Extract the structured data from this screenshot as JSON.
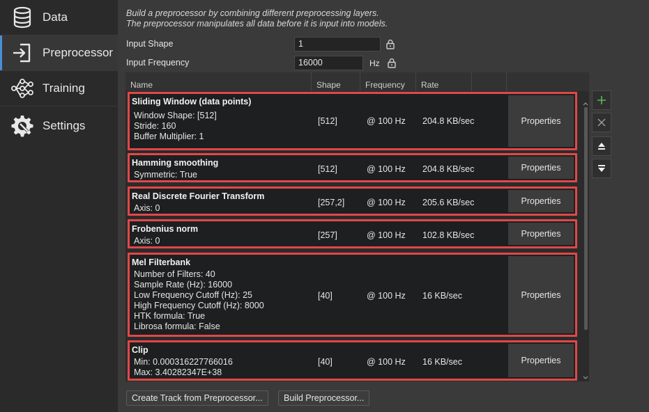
{
  "sidebar": {
    "items": [
      {
        "label": "Data",
        "icon": "database-icon"
      },
      {
        "label": "Preprocessor",
        "icon": "sign-in-icon"
      },
      {
        "label": "Training",
        "icon": "neural-network-icon"
      },
      {
        "label": "Settings",
        "icon": "gear-wrench-icon"
      }
    ],
    "active": "Preprocessor"
  },
  "description": {
    "line1": "Build a preprocessor by combining different preprocessing layers.",
    "line2": "The preprocessor manipulates all data before it is input into models."
  },
  "fields": {
    "input_shape_label": "Input Shape",
    "input_shape_value": "1",
    "input_frequency_label": "Input Frequency",
    "input_frequency_value": "16000",
    "frequency_unit": "Hz"
  },
  "table": {
    "headers": [
      "Name",
      "Shape",
      "Frequency",
      "Rate"
    ],
    "properties_label": "Properties",
    "rows": [
      {
        "name": "Sliding Window (data points)",
        "params": [
          "Window Shape: [512]",
          "Stride: 160",
          "Buffer Multiplier: 1"
        ],
        "shape": "[512]",
        "frequency": "@ 100 Hz",
        "rate": "204.8 KB/sec"
      },
      {
        "name": "Hamming smoothing",
        "params": [
          "Symmetric: True"
        ],
        "shape": "[512]",
        "frequency": "@ 100 Hz",
        "rate": "204.8 KB/sec"
      },
      {
        "name": "Real Discrete Fourier Transform",
        "params": [
          "Axis: 0"
        ],
        "shape": "[257,2]",
        "frequency": "@ 100 Hz",
        "rate": "205.6 KB/sec"
      },
      {
        "name": "Frobenius norm",
        "params": [
          "Axis: 0"
        ],
        "shape": "[257]",
        "frequency": "@ 100 Hz",
        "rate": "102.8 KB/sec"
      },
      {
        "name": "Mel Filterbank",
        "params": [
          "Number of Filters: 40",
          "Sample Rate (Hz): 16000",
          "Low Frequency Cutoff (Hz): 25",
          "High Frequency Cutoff (Hz): 8000",
          "HTK formula: True",
          "Librosa formula: False"
        ],
        "shape": "[40]",
        "frequency": "@ 100 Hz",
        "rate": "16 KB/sec"
      },
      {
        "name": "Clip",
        "params": [
          "Min: 0.000316227766016",
          "Max: 3.40282347E+38"
        ],
        "shape": "[40]",
        "frequency": "@ 100 Hz",
        "rate": "16 KB/sec"
      }
    ]
  },
  "side_buttons": [
    "add-icon",
    "remove-icon",
    "move-up-icon",
    "move-down-icon"
  ],
  "buttons": {
    "create_track": "Create Track from Preprocessor...",
    "build": "Build Preprocessor..."
  },
  "colors": {
    "highlight": "#e14848",
    "accent": "#4a8fd6",
    "add_green": "#5cb85c"
  }
}
